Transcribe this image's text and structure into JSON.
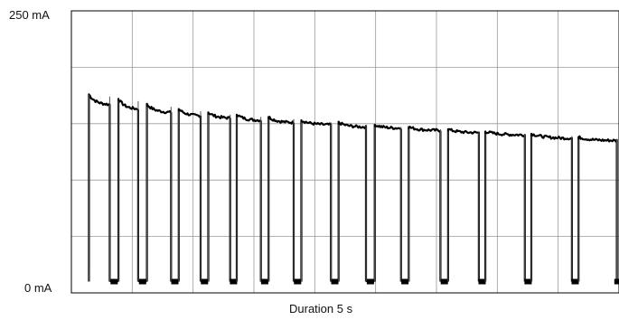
{
  "chart_data": {
    "type": "line",
    "title": "",
    "xlabel": "Duration 5 s",
    "ylabel": "",
    "y_top_label": "250 mA",
    "y_bottom_label": "0 mA",
    "xlim": [
      0,
      5
    ],
    "ylim": [
      0,
      250
    ],
    "grid": true,
    "grid_divisions_x": 9,
    "grid_divisions_y": 5,
    "series_color": "#000000",
    "series": [
      {
        "pulses": [
          {
            "start": 0.16,
            "end": 0.35,
            "i_start": 176,
            "i_end": 167
          },
          {
            "start": 0.43,
            "end": 0.61,
            "i_start": 172,
            "i_end": 163
          },
          {
            "start": 0.69,
            "end": 0.91,
            "i_start": 167,
            "i_end": 160
          },
          {
            "start": 0.98,
            "end": 1.18,
            "i_start": 163,
            "i_end": 157
          },
          {
            "start": 1.25,
            "end": 1.45,
            "i_start": 160,
            "i_end": 155
          },
          {
            "start": 1.51,
            "end": 1.73,
            "i_start": 158,
            "i_end": 153
          },
          {
            "start": 1.8,
            "end": 2.03,
            "i_start": 156,
            "i_end": 151
          },
          {
            "start": 2.1,
            "end": 2.37,
            "i_start": 153,
            "i_end": 149
          },
          {
            "start": 2.44,
            "end": 2.69,
            "i_start": 151,
            "i_end": 147
          },
          {
            "start": 2.77,
            "end": 3.01,
            "i_start": 149,
            "i_end": 146
          },
          {
            "start": 3.08,
            "end": 3.37,
            "i_start": 147,
            "i_end": 144
          },
          {
            "start": 3.44,
            "end": 3.72,
            "i_start": 145,
            "i_end": 142
          },
          {
            "start": 3.78,
            "end": 4.14,
            "i_start": 143,
            "i_end": 140
          },
          {
            "start": 4.2,
            "end": 4.57,
            "i_start": 141,
            "i_end": 137
          },
          {
            "start": 4.63,
            "end": 4.98,
            "i_start": 138,
            "i_end": 135
          }
        ],
        "rest_current": 10
      }
    ]
  }
}
